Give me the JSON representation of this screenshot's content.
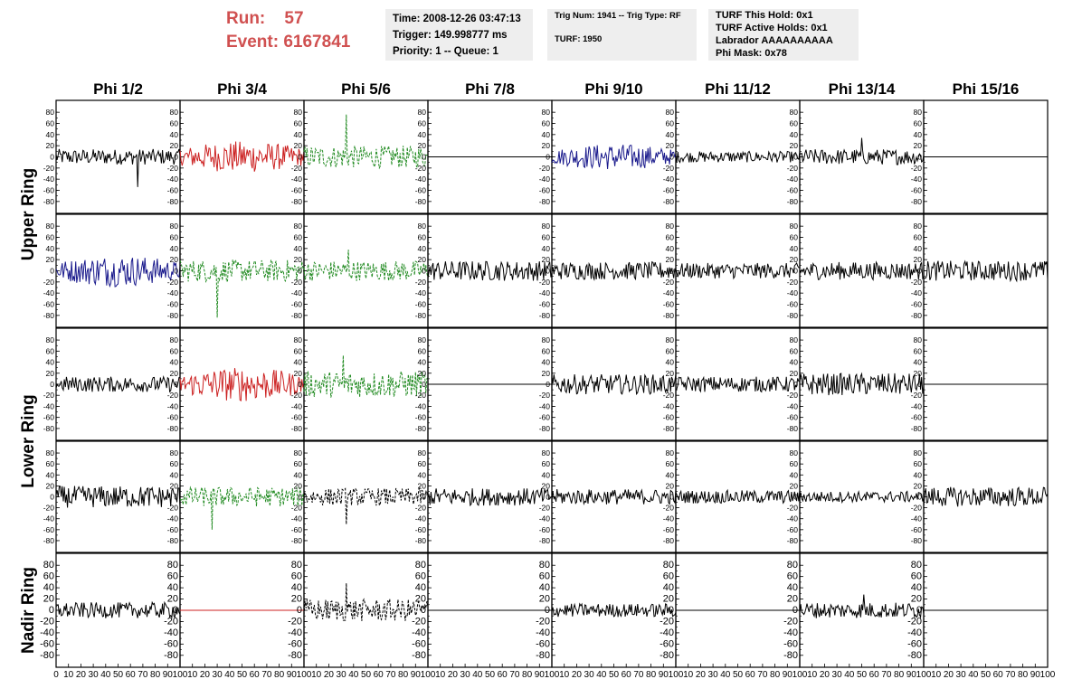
{
  "header": {
    "run_label": "Run:",
    "run_value": "57",
    "event_label": "Event:",
    "event_value": "6167841",
    "time": "Time: 2008-12-26 03:47:13",
    "trigger": "Trigger: 149.998777 ms",
    "priority": "Priority: 1 -- Queue: 1",
    "trig_num": "Trig Num: 1941 -- Trig Type: RF",
    "turf": "TURF: 1950",
    "turf_hold": "TURF This Hold: 0x1",
    "turf_active": "TURF Active Holds: 0x1",
    "labrador": "Labrador AAAAAAAAAA",
    "phi_mask": "Phi Mask: 0x78"
  },
  "colors": {
    "black": "#000000",
    "red": "#cc2222",
    "green": "#228b22",
    "blue": "#1a1a8c",
    "dashed_black": "#000000"
  },
  "chart_data": {
    "type": "line",
    "title": "",
    "columns": [
      "Phi 1/2",
      "Phi 3/4",
      "Phi 5/6",
      "Phi 7/8",
      "Phi 9/10",
      "Phi 11/12",
      "Phi 13/14",
      "Phi 15/16"
    ],
    "rows": [
      "Upper Ring",
      "Upper Ring",
      "Lower Ring",
      "Lower Ring",
      "Nadir Ring"
    ],
    "row_group_labels": [
      "Upper Ring",
      "Lower Ring",
      "Nadir Ring"
    ],
    "ylim": [
      -90,
      90
    ],
    "xlim": [
      0,
      100
    ],
    "y_ticks": [
      80,
      60,
      40,
      20,
      0,
      -20,
      -40,
      -60,
      -80
    ],
    "x_ticks": [
      0,
      10,
      20,
      30,
      40,
      50,
      60,
      70,
      80,
      90,
      100
    ],
    "x_tick_labels": [
      "0",
      "10",
      "20",
      "30",
      "40",
      "50",
      "60",
      "70",
      "80",
      "90",
      "100"
    ],
    "panels": [
      [
        {
          "style": "solid",
          "color": "black",
          "amp": 14,
          "spike": {
            "x": 66,
            "y": -54
          }
        },
        {
          "style": "solid",
          "color": "red",
          "amp": 22,
          "envelope": true
        },
        {
          "style": "dashed",
          "color": "green",
          "amp": 20,
          "spike": {
            "x": 34,
            "y": 76
          }
        },
        {
          "style": "flat",
          "color": "black",
          "amp": 0
        },
        {
          "style": "solid",
          "color": "blue",
          "amp": 18,
          "envelope": true
        },
        {
          "style": "solid",
          "color": "black",
          "amp": 10
        },
        {
          "style": "solid",
          "color": "black",
          "amp": 14,
          "spike": {
            "x": 50,
            "y": 34
          }
        },
        {
          "style": "flat",
          "color": "black",
          "amp": 0
        }
      ],
      [
        {
          "style": "solid",
          "color": "blue",
          "amp": 22,
          "envelope": true
        },
        {
          "style": "dashed",
          "color": "green",
          "amp": 20,
          "spike": {
            "x": 30,
            "y": -84
          }
        },
        {
          "style": "dashed",
          "color": "green",
          "amp": 18,
          "spike": {
            "x": 36,
            "y": 38
          }
        },
        {
          "style": "solid",
          "color": "black",
          "amp": 18
        },
        {
          "style": "solid",
          "color": "black",
          "amp": 16
        },
        {
          "style": "solid",
          "color": "black",
          "amp": 14
        },
        {
          "style": "solid",
          "color": "black",
          "amp": 16
        },
        {
          "style": "solid",
          "color": "black",
          "amp": 18
        }
      ],
      [
        {
          "style": "solid",
          "color": "black",
          "amp": 14
        },
        {
          "style": "solid",
          "color": "red",
          "amp": 24,
          "envelope": true
        },
        {
          "style": "dashed",
          "color": "green",
          "amp": 24,
          "spike": {
            "x": 32,
            "y": 52
          }
        },
        {
          "style": "flat",
          "color": "black",
          "amp": 0
        },
        {
          "style": "solid",
          "color": "black",
          "amp": 18
        },
        {
          "style": "solid",
          "color": "black",
          "amp": 14
        },
        {
          "style": "solid",
          "color": "black",
          "amp": 20
        },
        {
          "style": "flat",
          "color": "black",
          "amp": 0
        }
      ],
      [
        {
          "style": "solid",
          "color": "black",
          "amp": 20
        },
        {
          "style": "dashed",
          "color": "green",
          "amp": 18,
          "spike": {
            "x": 26,
            "y": -60
          }
        },
        {
          "style": "dashed",
          "color": "dashed_black",
          "amp": 16,
          "spike": {
            "x": 34,
            "y": -50
          }
        },
        {
          "style": "solid",
          "color": "black",
          "amp": 16
        },
        {
          "style": "solid",
          "color": "black",
          "amp": 14
        },
        {
          "style": "solid",
          "color": "black",
          "amp": 12
        },
        {
          "style": "solid",
          "color": "black",
          "amp": 10
        },
        {
          "style": "solid",
          "color": "black",
          "amp": 18
        }
      ],
      [
        {
          "style": "solid",
          "color": "black",
          "amp": 14
        },
        {
          "style": "flat",
          "color": "red",
          "amp": 0
        },
        {
          "style": "dashed",
          "color": "dashed_black",
          "amp": 20,
          "spike": {
            "x": 34,
            "y": 48
          }
        },
        {
          "style": "flat",
          "color": "black",
          "amp": 0
        },
        {
          "style": "solid",
          "color": "black",
          "amp": 12
        },
        {
          "style": "flat",
          "color": "black",
          "amp": 0
        },
        {
          "style": "solid",
          "color": "black",
          "amp": 14,
          "spike": {
            "x": 52,
            "y": 28
          }
        },
        {
          "style": "flat",
          "color": "black",
          "amp": 0
        }
      ]
    ]
  }
}
